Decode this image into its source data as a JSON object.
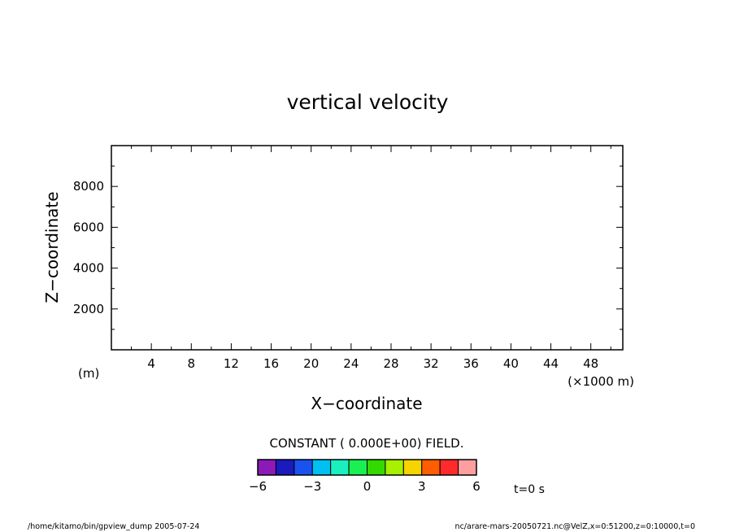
{
  "chart_data": {
    "type": "heatmap",
    "title": "vertical velocity",
    "xlabel": "X−coordinate",
    "ylabel": "Z−coordinate",
    "x_unit": "(×1000 m)",
    "y_unit": "(m)",
    "xlim": [
      0,
      51.2
    ],
    "ylim": [
      0,
      10000
    ],
    "x_ticks": [
      4,
      8,
      12,
      16,
      20,
      24,
      28,
      32,
      36,
      40,
      44,
      48
    ],
    "y_ticks": [
      2000,
      4000,
      6000,
      8000
    ],
    "x_minor_step": 2,
    "y_minor_step": 1000,
    "field_note": "CONSTANT ( 0.000E+00) FIELD.",
    "time_label": "t=0 s",
    "colorbar": {
      "min": -6,
      "max": 6,
      "ticks": [
        -6,
        -3,
        0,
        3,
        6
      ],
      "tick_labels": [
        "−6",
        "−3",
        "0",
        "3",
        "6"
      ],
      "colors": [
        "#8c1ab8",
        "#1a1abf",
        "#1a52f0",
        "#00bff2",
        "#1af0bf",
        "#1af052",
        "#33d900",
        "#a6f000",
        "#f5d400",
        "#ff5e00",
        "#ff2b2b",
        "#ff9e9e"
      ]
    }
  },
  "footer": {
    "left": "/home/kitamo/bin/gpview_dump  2005-07-24",
    "right": "nc/arare-mars-20050721.nc@VelZ,x=0:51200,z=0:10000,t=0"
  }
}
